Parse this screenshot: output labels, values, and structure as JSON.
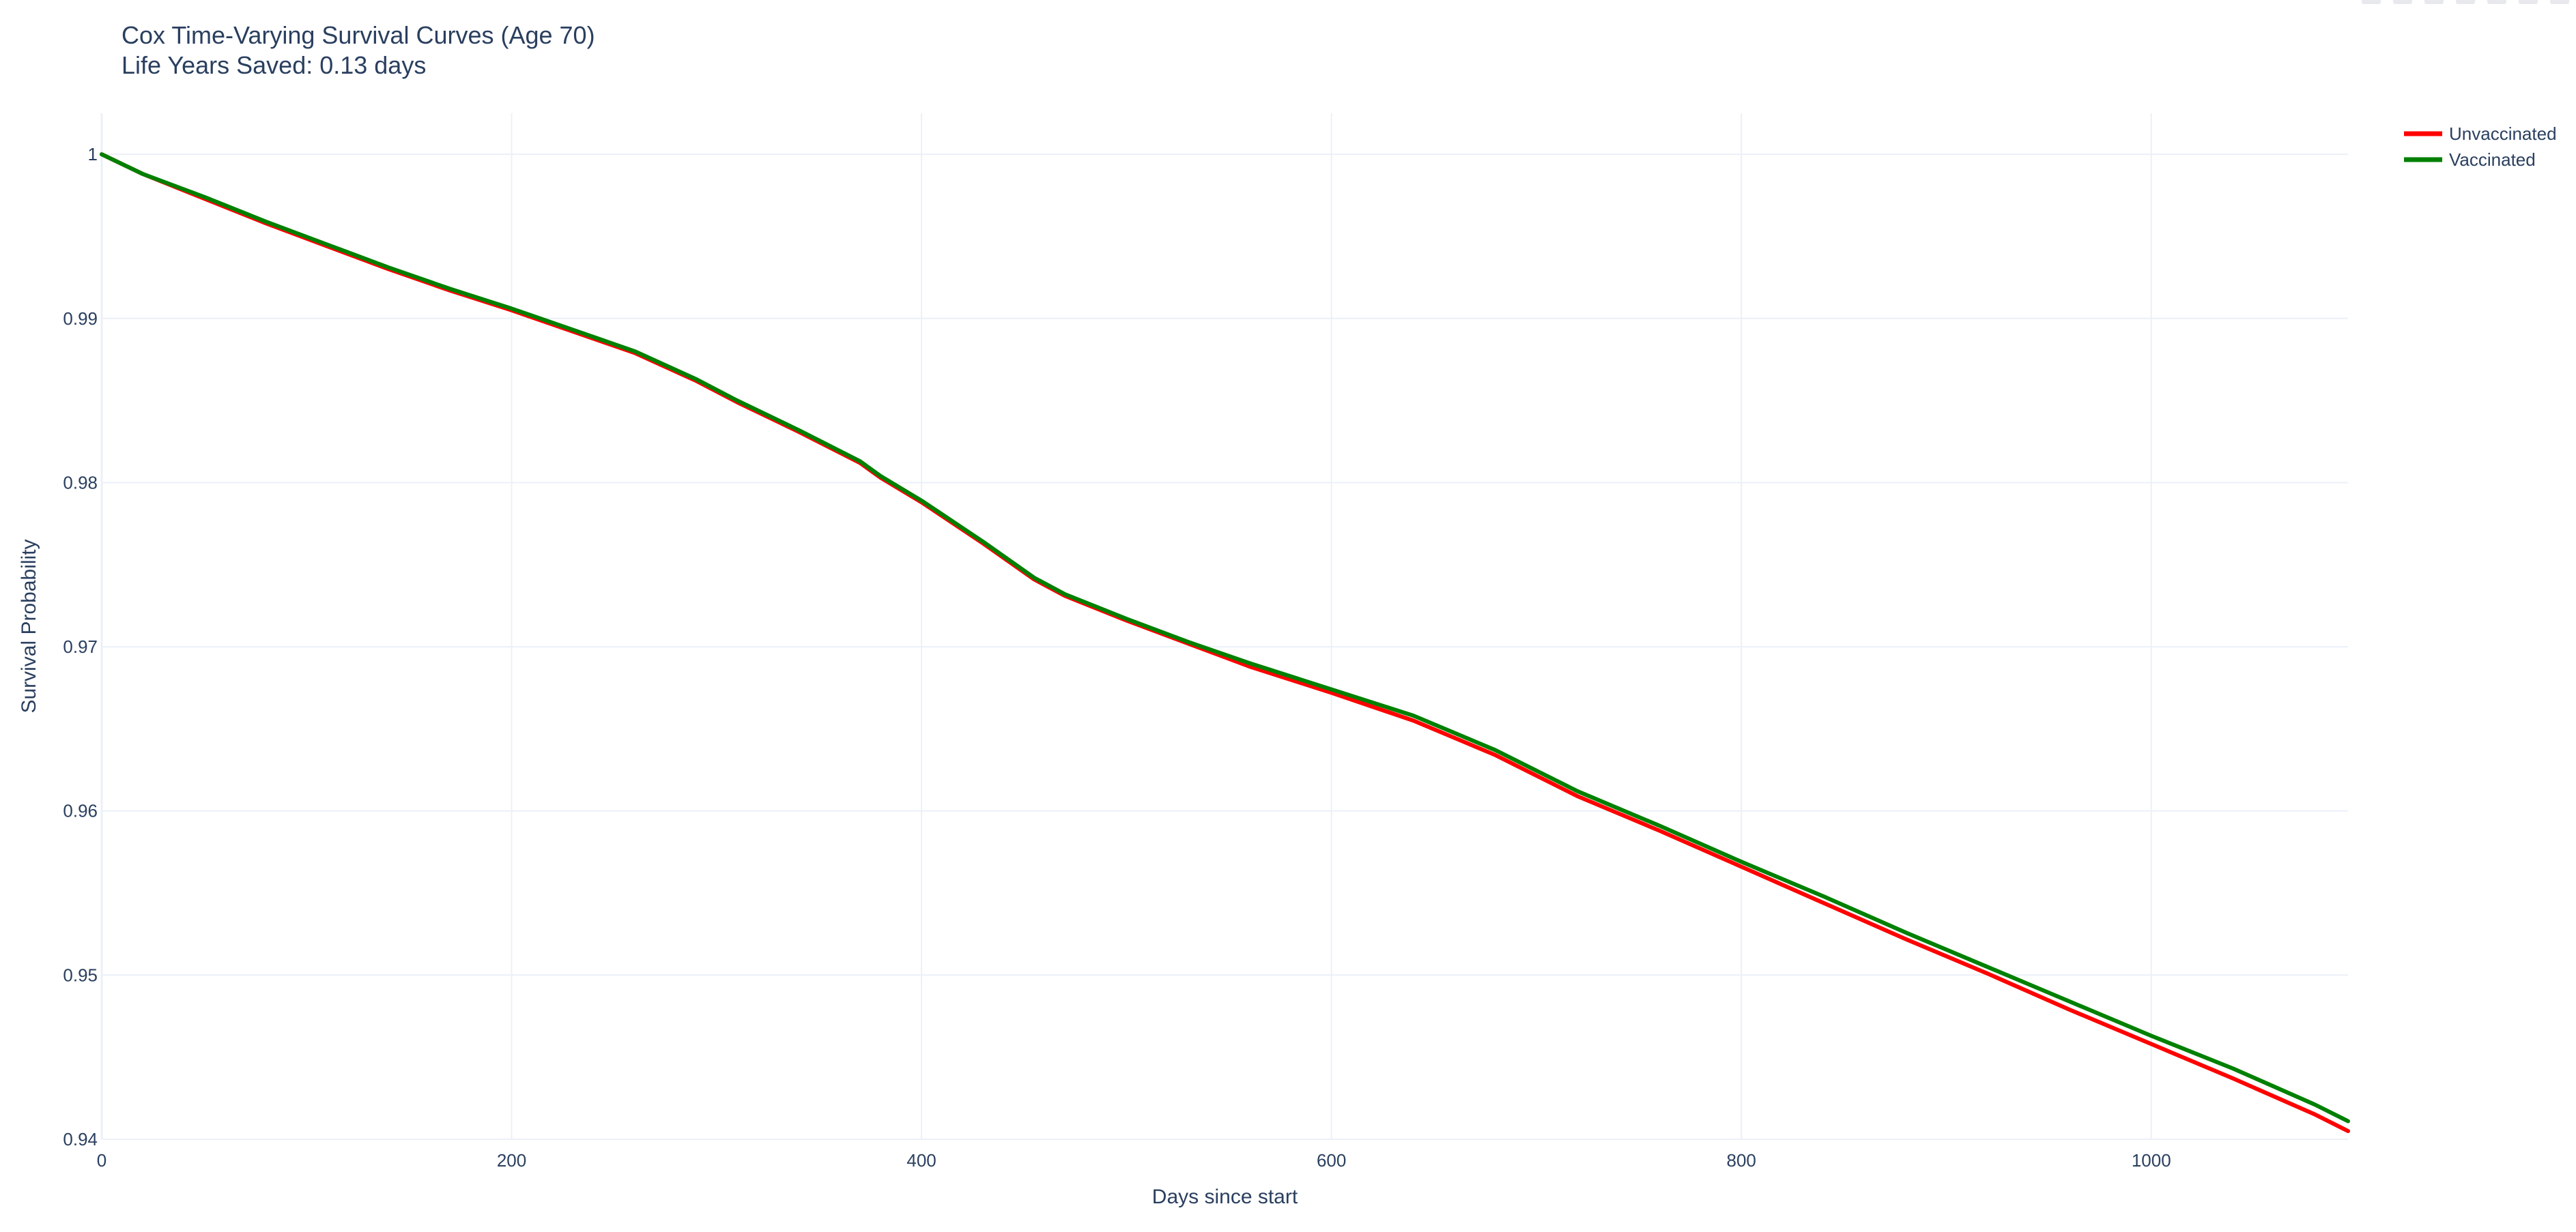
{
  "chart_data": {
    "type": "line",
    "title": "Cox Time-Varying Survival Curves (Age 70)",
    "subtitle": "Life Years Saved: 0.13 days",
    "xlabel": "Days since start",
    "ylabel": "Survival Probability",
    "xlim": [
      0,
      1096
    ],
    "ylim": [
      0.94,
      1.0025
    ],
    "x_ticks": [
      0,
      200,
      400,
      600,
      800,
      1000
    ],
    "y_ticks": [
      0.94,
      0.95,
      0.96,
      0.97,
      0.98,
      0.99,
      1
    ],
    "grid": true,
    "legend_position": "top-right",
    "series": [
      {
        "name": "Unvaccinated",
        "color": "#ff0000",
        "x": [
          0,
          20,
          50,
          80,
          110,
          140,
          170,
          200,
          230,
          260,
          290,
          310,
          340,
          370,
          380,
          400,
          430,
          455,
          470,
          500,
          530,
          560,
          600,
          640,
          680,
          720,
          760,
          800,
          840,
          880,
          920,
          960,
          1000,
          1040,
          1080,
          1096
        ],
        "y": [
          1.0,
          0.9988,
          0.9973,
          0.9958,
          0.9944,
          0.993,
          0.9917,
          0.9905,
          0.9892,
          0.9879,
          0.9862,
          0.9849,
          0.9831,
          0.9812,
          0.9803,
          0.9788,
          0.9763,
          0.9741,
          0.9731,
          0.9716,
          0.9702,
          0.9688,
          0.9672,
          0.9655,
          0.9634,
          0.9609,
          0.9588,
          0.9566,
          0.9544,
          0.9522,
          0.9501,
          0.9479,
          0.9458,
          0.9437,
          0.9415,
          0.9405
        ]
      },
      {
        "name": "Vaccinated",
        "color": "#008000",
        "x": [
          0,
          20,
          50,
          80,
          110,
          140,
          170,
          200,
          230,
          260,
          290,
          310,
          340,
          370,
          380,
          400,
          430,
          455,
          470,
          500,
          530,
          560,
          600,
          640,
          680,
          720,
          760,
          800,
          840,
          880,
          920,
          960,
          1000,
          1040,
          1080,
          1096
        ],
        "y": [
          1.0,
          0.9988,
          0.9974,
          0.9959,
          0.9945,
          0.9931,
          0.9918,
          0.9906,
          0.9893,
          0.988,
          0.9863,
          0.985,
          0.9832,
          0.9813,
          0.9804,
          0.9789,
          0.9764,
          0.9742,
          0.9732,
          0.9717,
          0.9703,
          0.969,
          0.9674,
          0.9658,
          0.9637,
          0.9612,
          0.9591,
          0.9569,
          0.9548,
          0.9526,
          0.9505,
          0.9484,
          0.9463,
          0.9443,
          0.9421,
          0.9411
        ]
      }
    ]
  }
}
